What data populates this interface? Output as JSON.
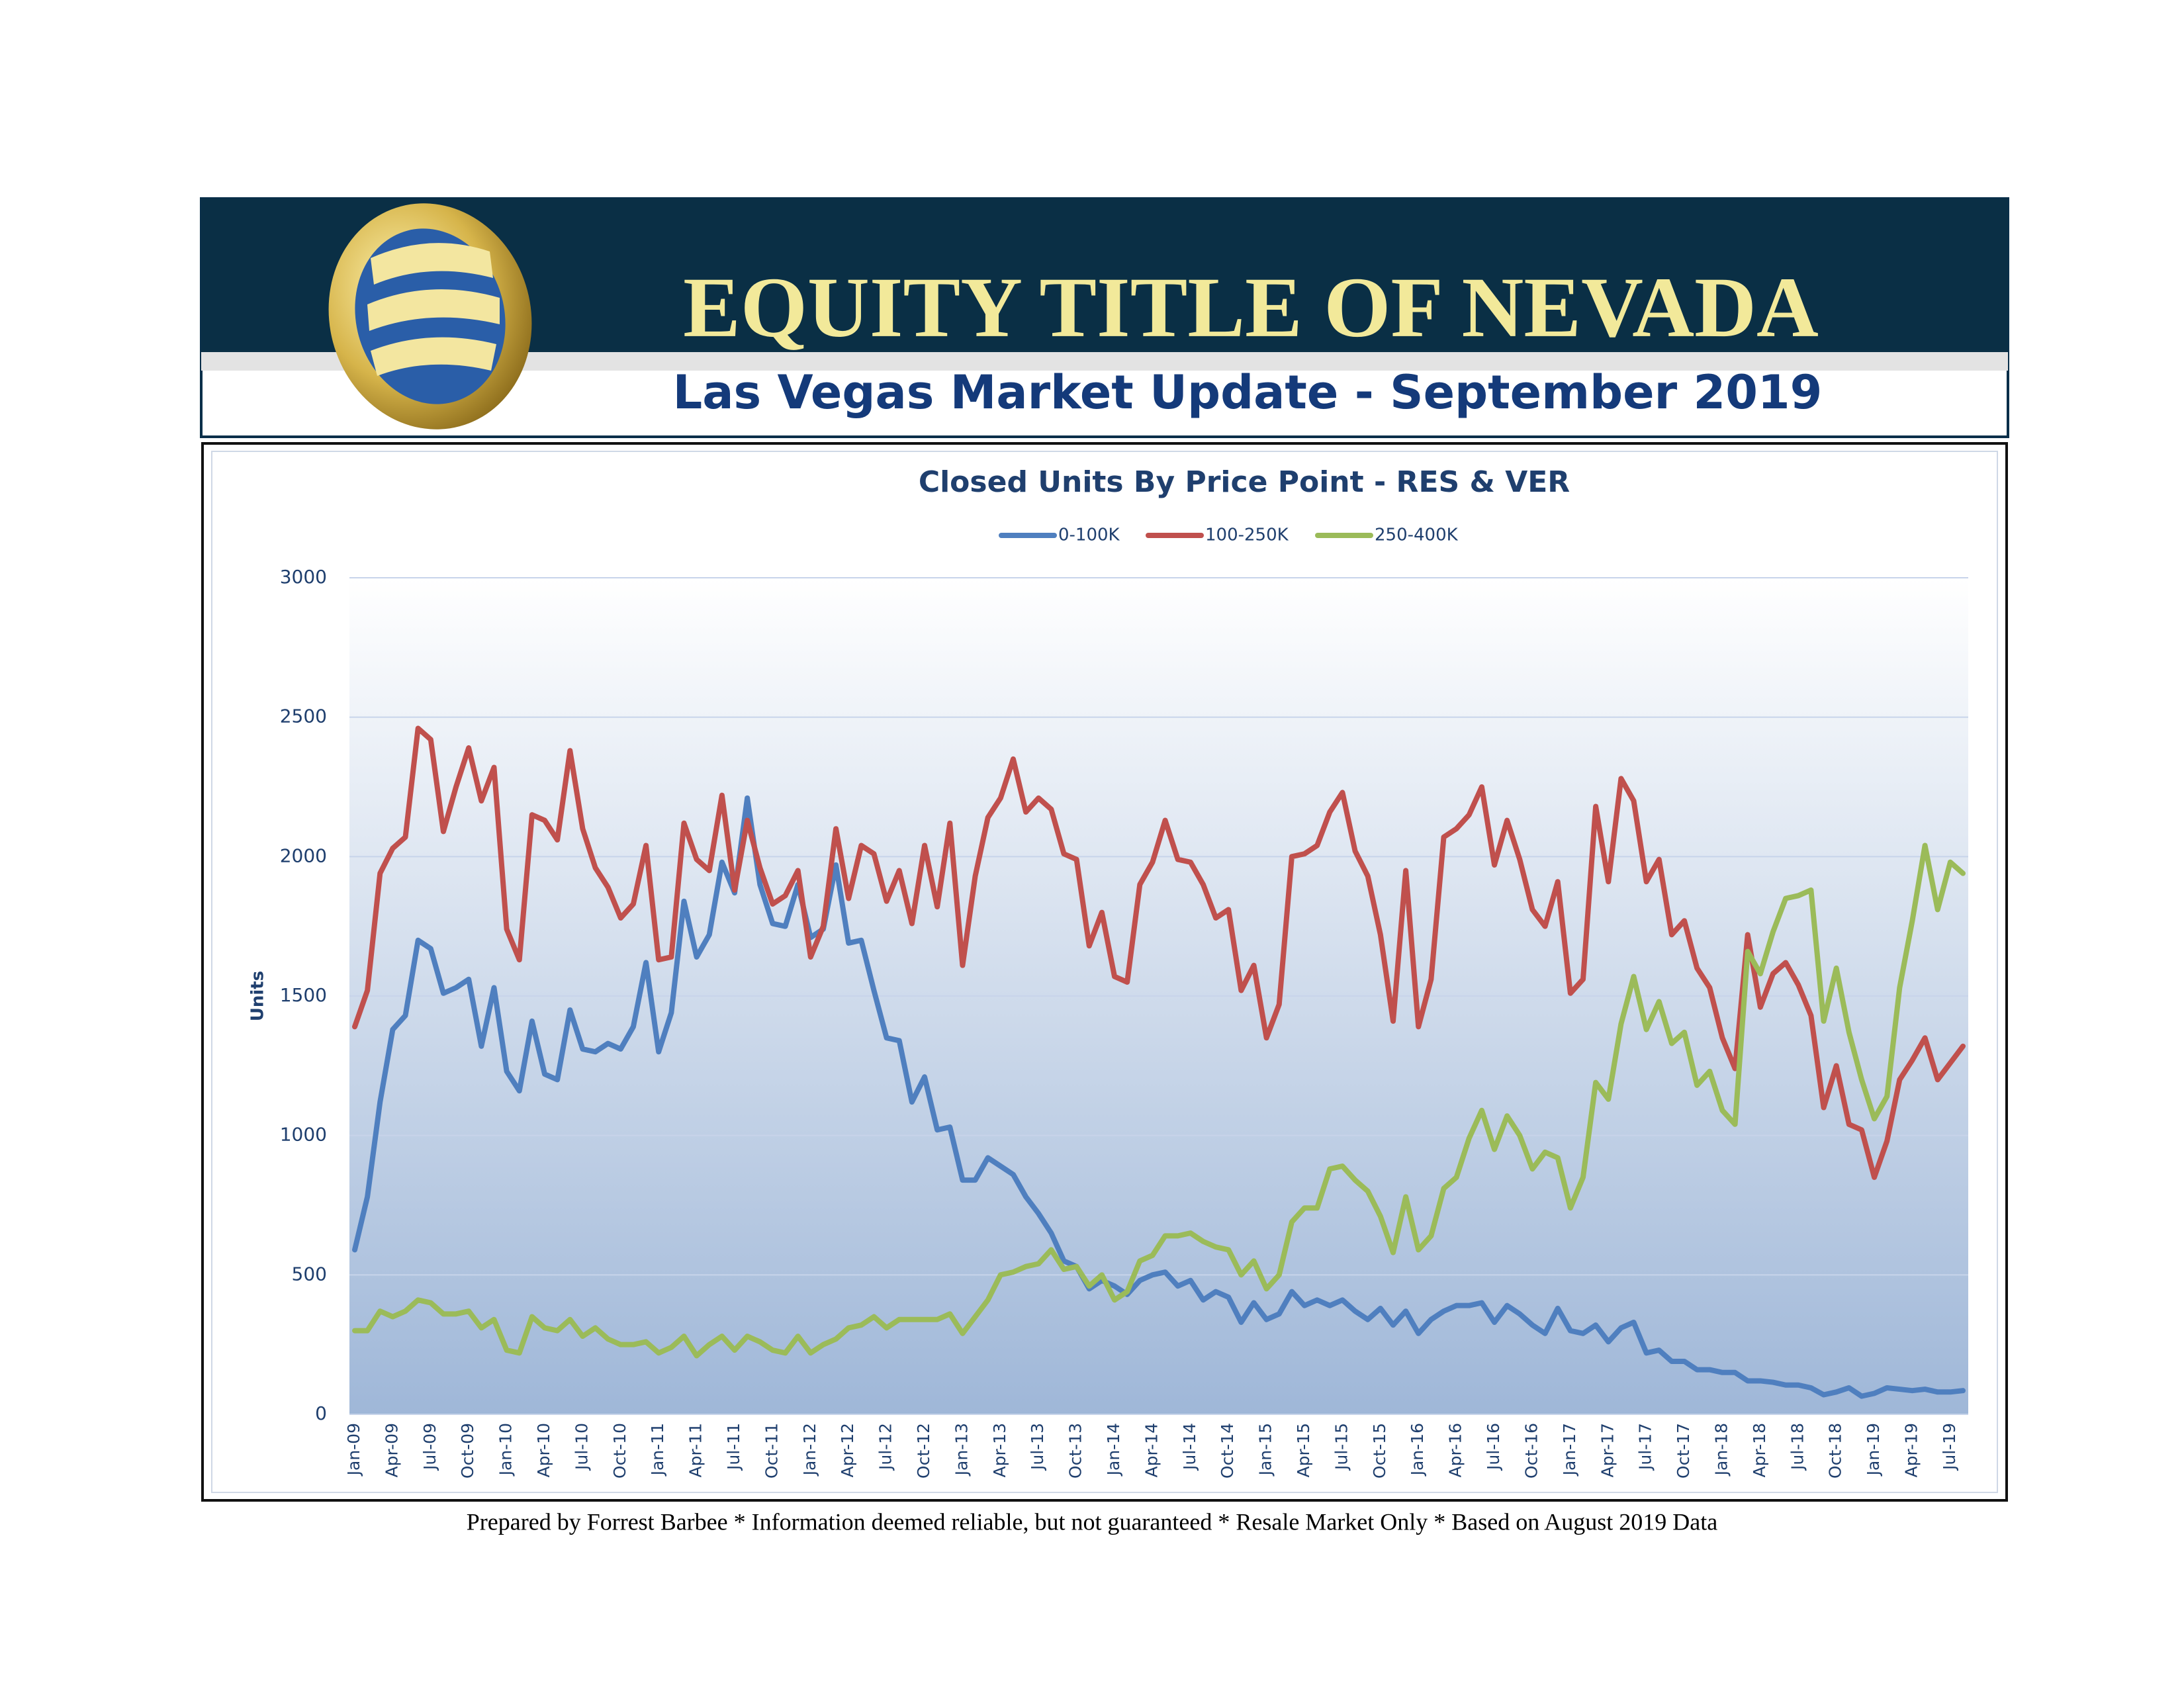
{
  "header": {
    "company": "EQUITY TITLE OF NEVADA",
    "subtitle": "Las Vegas Market Update - September 2019"
  },
  "footer": "Prepared by Forrest Barbee * Information deemed reliable, but not guaranteed * Resale Market Only * Based on August 2019 Data",
  "chart_data": {
    "type": "line",
    "title": "Closed Units By Price Point - RES & VER",
    "y_label": "Units",
    "categories": [
      "Jan-09",
      null,
      null,
      "Apr-09",
      null,
      null,
      "Jul-09",
      null,
      null,
      "Oct-09",
      null,
      null,
      "Jan-10",
      null,
      null,
      "Apr-10",
      null,
      null,
      "Jul-10",
      null,
      null,
      "Oct-10",
      null,
      null,
      "Jan-11",
      null,
      null,
      "Apr-11",
      null,
      null,
      "Jul-11",
      null,
      null,
      "Oct-11",
      null,
      null,
      "Jan-12",
      null,
      null,
      "Apr-12",
      null,
      null,
      "Jul-12",
      null,
      null,
      "Oct-12",
      null,
      null,
      "Jan-13",
      null,
      null,
      "Apr-13",
      null,
      null,
      "Jul-13",
      null,
      null,
      "Oct-13",
      null,
      null,
      "Jan-14",
      null,
      null,
      "Apr-14",
      null,
      null,
      "Jul-14",
      null,
      null,
      "Oct-14",
      null,
      null,
      "Jan-15",
      null,
      null,
      "Apr-15",
      null,
      null,
      "Jul-15",
      null,
      null,
      "Oct-15",
      null,
      null,
      "Jan-16",
      null,
      null,
      "Apr-16",
      null,
      null,
      "Jul-16",
      null,
      null,
      "Oct-16",
      null,
      null,
      "Jan-17",
      null,
      null,
      "Apr-17",
      null,
      null,
      "Jul-17",
      null,
      null,
      "Oct-17",
      null,
      null,
      "Jan-18",
      null,
      null,
      "Apr-18",
      null,
      null,
      "Jul-18",
      null,
      null,
      "Oct-18",
      null,
      null,
      "Jan-19",
      null,
      null,
      "Apr-19",
      null,
      null,
      "Jul-19",
      null
    ],
    "series": [
      {
        "name": "0-100K",
        "color": "#4f7fbf",
        "values": [
          590,
          780,
          1120,
          1380,
          1430,
          1700,
          1670,
          1510,
          1530,
          1560,
          1320,
          1530,
          1230,
          1160,
          1410,
          1220,
          1200,
          1450,
          1310,
          1300,
          1330,
          1310,
          1390,
          1620,
          1300,
          1440,
          1840,
          1640,
          1720,
          1980,
          1870,
          2210,
          1900,
          1760,
          1750,
          1900,
          1710,
          1740,
          1970,
          1690,
          1700,
          1520,
          1350,
          1340,
          1120,
          1210,
          1020,
          1030,
          840,
          840,
          920,
          890,
          860,
          780,
          720,
          650,
          550,
          530,
          450,
          480,
          460,
          430,
          480,
          500,
          510,
          460,
          480,
          410,
          440,
          420,
          330,
          400,
          340,
          360,
          440,
          390,
          410,
          390,
          410,
          370,
          340,
          380,
          320,
          370,
          290,
          340,
          370,
          390,
          390,
          400,
          330,
          390,
          360,
          320,
          290,
          380,
          300,
          290,
          320,
          260,
          310,
          330,
          220,
          230,
          190,
          190,
          160,
          160,
          150,
          150,
          120,
          120,
          115,
          105,
          105,
          95,
          70,
          80,
          95,
          65,
          75,
          95,
          90,
          85,
          90,
          80,
          80,
          85
        ]
      },
      {
        "name": "100-250K",
        "color": "#c0504d",
        "values": [
          1390,
          1520,
          1940,
          2030,
          2070,
          2460,
          2420,
          2090,
          2250,
          2390,
          2200,
          2320,
          1740,
          1630,
          2150,
          2130,
          2060,
          2380,
          2100,
          1960,
          1890,
          1780,
          1830,
          2040,
          1630,
          1640,
          2120,
          1990,
          1950,
          2220,
          1880,
          2130,
          1960,
          1830,
          1860,
          1950,
          1640,
          1750,
          2100,
          1850,
          2040,
          2010,
          1840,
          1950,
          1760,
          2040,
          1820,
          2120,
          1610,
          1930,
          2140,
          2210,
          2350,
          2160,
          2210,
          2170,
          2010,
          1990,
          1680,
          1800,
          1570,
          1550,
          1900,
          1980,
          2130,
          1990,
          1980,
          1900,
          1780,
          1810,
          1520,
          1610,
          1350,
          1470,
          2000,
          2010,
          2040,
          2160,
          2230,
          2020,
          1930,
          1720,
          1410,
          1950,
          1390,
          1560,
          2070,
          2100,
          2150,
          2250,
          1970,
          2130,
          1990,
          1810,
          1750,
          1910,
          1510,
          1560,
          2180,
          1910,
          2280,
          2200,
          1910,
          1990,
          1720,
          1770,
          1600,
          1530,
          1350,
          1240,
          1720,
          1460,
          1580,
          1620,
          1540,
          1430,
          1100,
          1250,
          1040,
          1020,
          850,
          980,
          1200,
          1270,
          1350,
          1200,
          1260,
          1320
        ]
      },
      {
        "name": "250-400K",
        "color": "#9bbb59",
        "values": [
          300,
          300,
          370,
          350,
          370,
          410,
          400,
          360,
          360,
          370,
          310,
          340,
          230,
          220,
          350,
          310,
          300,
          340,
          280,
          310,
          270,
          250,
          250,
          260,
          220,
          240,
          280,
          210,
          250,
          280,
          230,
          280,
          260,
          230,
          220,
          280,
          220,
          250,
          270,
          310,
          320,
          350,
          310,
          340,
          340,
          340,
          340,
          360,
          290,
          350,
          410,
          500,
          510,
          530,
          540,
          590,
          520,
          530,
          460,
          500,
          410,
          440,
          550,
          570,
          640,
          640,
          650,
          620,
          600,
          590,
          500,
          550,
          450,
          500,
          690,
          740,
          740,
          880,
          890,
          840,
          800,
          710,
          580,
          780,
          590,
          640,
          810,
          850,
          990,
          1090,
          950,
          1070,
          1000,
          880,
          940,
          920,
          740,
          850,
          1190,
          1130,
          1400,
          1570,
          1380,
          1480,
          1330,
          1370,
          1180,
          1230,
          1090,
          1040,
          1660,
          1580,
          1730,
          1850,
          1860,
          1880,
          1410,
          1600,
          1370,
          1200,
          1060,
          1140,
          1530,
          1770,
          2040,
          1810,
          1980,
          1940
        ]
      }
    ],
    "ylim": [
      0,
      3000
    ],
    "yticks": [
      0,
      500,
      1000,
      1500,
      2000,
      2500,
      3000
    ],
    "grid": true,
    "legend": "top"
  }
}
